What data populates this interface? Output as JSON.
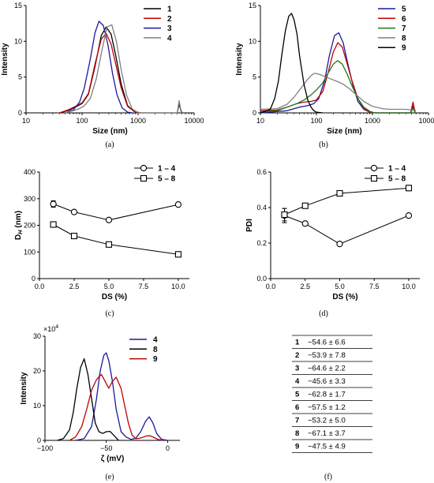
{
  "panel_labels": [
    "(a)",
    "(b)",
    "(c)",
    "(d)",
    "(e)",
    "(f)"
  ],
  "chart_data": [
    {
      "id": "a",
      "type": "line",
      "xscale": "log",
      "xlabel": "Size (nm)",
      "ylabel": "Intensity",
      "xlim": [
        10,
        10000
      ],
      "ylim": [
        0,
        15
      ],
      "xticks": [
        10,
        100,
        1000,
        10000
      ],
      "xtick_labels": [
        "10",
        "100",
        "1000",
        "10000"
      ],
      "yticks": [
        0,
        5,
        10,
        15
      ],
      "legend": "top-right",
      "series": [
        {
          "name": "1",
          "color": "#000000",
          "x": [
            40,
            60,
            80,
            100,
            130,
            170,
            220,
            270,
            330,
            400,
            500,
            650,
            850,
            1100,
            5000,
            5400,
            5800,
            6200
          ],
          "y": [
            0,
            0.4,
            0.9,
            1.3,
            2.6,
            6.5,
            10.8,
            12.0,
            11.0,
            8.0,
            4.0,
            1.0,
            0.2,
            0,
            0,
            1.3,
            0.3,
            0
          ]
        },
        {
          "name": "2",
          "color": "#c00000",
          "x": [
            40,
            60,
            80,
            100,
            130,
            170,
            220,
            270,
            330,
            400,
            500,
            650,
            850,
            1100
          ],
          "y": [
            0,
            0.5,
            1.0,
            1.4,
            2.7,
            6.8,
            10.3,
            11.1,
            9.6,
            6.8,
            3.5,
            0.9,
            0.2,
            0
          ]
        },
        {
          "name": "3",
          "color": "#1a1a9a",
          "x": [
            50,
            70,
            90,
            110,
            140,
            170,
            200,
            240,
            290,
            350,
            420,
            520,
            650,
            800
          ],
          "y": [
            0,
            0.4,
            1.5,
            3.5,
            7.5,
            11.2,
            12.8,
            12.2,
            9.5,
            5.5,
            2.5,
            0.7,
            0.1,
            0
          ]
        },
        {
          "name": "4",
          "color": "#808080",
          "x": [
            50,
            70,
            90,
            110,
            140,
            180,
            230,
            280,
            340,
            410,
            500,
            620,
            780,
            1000,
            5000,
            5400,
            5800,
            6200
          ],
          "y": [
            0,
            0.3,
            0.6,
            1.0,
            2.0,
            4.8,
            9.0,
            12.0,
            12.3,
            10.0,
            6.0,
            2.5,
            0.6,
            0,
            0,
            1.7,
            0.4,
            0
          ]
        }
      ]
    },
    {
      "id": "b",
      "type": "line",
      "xscale": "log",
      "xlabel": "Size (nm)",
      "ylabel": "Intensity",
      "xlim": [
        10,
        10000
      ],
      "ylim": [
        0,
        15
      ],
      "xticks": [
        10,
        100,
        1000,
        10000
      ],
      "xtick_labels": [
        "10",
        "100",
        "1000",
        "10000"
      ],
      "yticks": [
        0,
        5,
        10,
        15
      ],
      "legend": "top-right",
      "series": [
        {
          "name": "5",
          "color": "#1a1a9a",
          "x": [
            10,
            30,
            50,
            70,
            90,
            110,
            140,
            170,
            210,
            250,
            300,
            360,
            450,
            550,
            700,
            900,
            1100,
            4800,
            5300,
            5800
          ],
          "y": [
            0,
            0.3,
            0.8,
            1.0,
            1.3,
            2.0,
            4.5,
            8.0,
            10.8,
            11.2,
            9.8,
            7.0,
            3.8,
            1.6,
            0.5,
            0.1,
            0,
            0,
            0.9,
            0
          ]
        },
        {
          "name": "6",
          "color": "#c00000",
          "x": [
            10,
            20,
            30,
            45,
            60,
            80,
            100,
            130,
            160,
            200,
            240,
            290,
            350,
            430,
            550,
            700,
            900,
            1100,
            4800,
            5300,
            5800
          ],
          "y": [
            0.3,
            0.4,
            0.8,
            1.3,
            1.5,
            1.6,
            1.8,
            3.0,
            5.5,
            8.5,
            9.8,
            9.2,
            7.0,
            4.5,
            2.0,
            0.6,
            0.1,
            0,
            0,
            1.5,
            0
          ]
        },
        {
          "name": "7",
          "color": "#1a7a1a",
          "x": [
            10,
            20,
            30,
            45,
            60,
            80,
            100,
            130,
            160,
            200,
            240,
            290,
            350,
            430,
            550,
            700,
            900,
            1100,
            4800,
            5300,
            5800
          ],
          "y": [
            0.1,
            0.3,
            0.8,
            1.3,
            1.8,
            2.5,
            3.2,
            4.2,
            5.5,
            6.8,
            7.3,
            6.8,
            5.5,
            3.8,
            2.0,
            0.8,
            0.2,
            0,
            0,
            0.7,
            0
          ]
        },
        {
          "name": "8",
          "color": "#808080",
          "x": [
            10,
            20,
            30,
            40,
            50,
            60,
            70,
            80,
            90,
            100,
            120,
            150,
            200,
            250,
            300,
            400,
            500,
            700,
            1000,
            1500,
            2000,
            3000,
            4000,
            5000,
            6000
          ],
          "y": [
            0.5,
            0.6,
            1.2,
            2.2,
            3.2,
            4.0,
            4.7,
            5.2,
            5.5,
            5.5,
            5.3,
            5.0,
            4.6,
            4.3,
            4.0,
            3.3,
            2.6,
            1.6,
            0.9,
            0.6,
            0.5,
            0.5,
            0.5,
            0.4,
            0.3
          ]
        },
        {
          "name": "9",
          "color": "#000000",
          "x": [
            10,
            15,
            18,
            21,
            24,
            28,
            32,
            36,
            40,
            45,
            50,
            60,
            70,
            80,
            90,
            100,
            130
          ],
          "y": [
            0,
            0.5,
            2.0,
            4.5,
            8.0,
            11.5,
            13.5,
            13.9,
            13.0,
            11.0,
            8.0,
            4.0,
            1.8,
            0.8,
            0.3,
            0.1,
            0
          ]
        }
      ]
    },
    {
      "id": "c",
      "type": "scatter",
      "xlabel": "DS (%)",
      "ylabel": "D_H (nm)",
      "xlim": [
        0,
        10.8
      ],
      "ylim": [
        0,
        400
      ],
      "xticks": [
        0,
        2.5,
        5,
        7.5,
        10
      ],
      "xtick_labels": [
        "0.0",
        "2.5",
        "5.0",
        "7.5",
        "10.0"
      ],
      "yticks": [
        0,
        100,
        200,
        300,
        400
      ],
      "legend": "top-right",
      "series": [
        {
          "name": "1 – 4",
          "marker": "circle",
          "x": [
            1,
            2.5,
            5,
            10
          ],
          "y": [
            280,
            250,
            220,
            278
          ],
          "err": [
            12,
            6,
            5,
            5
          ]
        },
        {
          "name": "5 – 8",
          "marker": "square",
          "x": [
            1,
            2.5,
            5,
            10
          ],
          "y": [
            203,
            160,
            128,
            91
          ],
          "err": [
            6,
            5,
            4,
            4
          ]
        }
      ]
    },
    {
      "id": "d",
      "type": "scatter",
      "xlabel": "DS (%)",
      "ylabel": "PDI",
      "xlim": [
        0,
        10.8
      ],
      "ylim": [
        0,
        0.6
      ],
      "xticks": [
        0,
        2.5,
        5,
        7.5,
        10
      ],
      "xtick_labels": [
        "0.0",
        "2.5",
        "5.0",
        "7.5",
        "10.0"
      ],
      "yticks": [
        0,
        0.2,
        0.4,
        0.6
      ],
      "ytick_labels": [
        "0.0",
        "0.2",
        "0.4",
        "0.6"
      ],
      "legend": "top-right",
      "series": [
        {
          "name": "1 – 4",
          "marker": "circle",
          "x": [
            1,
            2.5,
            5,
            10
          ],
          "y": [
            0.355,
            0.31,
            0.195,
            0.355
          ],
          "err": [
            0.04,
            0.005,
            0.005,
            0.005
          ]
        },
        {
          "name": "5 – 8",
          "marker": "square",
          "x": [
            1,
            2.5,
            5,
            10
          ],
          "y": [
            0.36,
            0.41,
            0.48,
            0.51
          ],
          "err": [
            0.035,
            0.01,
            0.01,
            0.015
          ]
        }
      ]
    },
    {
      "id": "e",
      "type": "line",
      "xlabel": "ζ (mV)",
      "ylabel": "Intensity",
      "y_multiplier": "×10",
      "y_multiplier_exp": "4",
      "xlim": [
        -100,
        10
      ],
      "ylim": [
        0,
        30
      ],
      "xticks": [
        -100,
        -50,
        0
      ],
      "xtick_labels": [
        "−100",
        "−50",
        "0"
      ],
      "yticks": [
        0,
        10,
        20,
        30
      ],
      "legend": "top-right",
      "series": [
        {
          "name": "4",
          "color": "#1a1a9a",
          "x": [
            -75,
            -68,
            -62,
            -58,
            -55,
            -52,
            -50,
            -48,
            -45,
            -42,
            -38,
            -34,
            -30,
            -26,
            -22,
            -18,
            -15,
            -12,
            -9,
            -5,
            0
          ],
          "y": [
            0,
            0.5,
            4.0,
            12.0,
            20.0,
            24.5,
            25.2,
            23.0,
            17.0,
            9.0,
            2.5,
            1.0,
            0.3,
            0.6,
            2.5,
            5.5,
            6.8,
            5.0,
            2.0,
            0.3,
            0
          ]
        },
        {
          "name": "8",
          "color": "#000000",
          "x": [
            -90,
            -85,
            -80,
            -77,
            -74,
            -71,
            -68,
            -65,
            -62,
            -59,
            -56,
            -53,
            -50,
            -47,
            -44,
            -40
          ],
          "y": [
            0,
            0.5,
            3.0,
            8.0,
            15.0,
            21.0,
            23.5,
            19.0,
            12.0,
            5.0,
            2.5,
            2.0,
            2.5,
            2.6,
            1.5,
            0
          ]
        },
        {
          "name": "9",
          "color": "#c00000",
          "x": [
            -80,
            -75,
            -70,
            -66,
            -62,
            -58,
            -54,
            -51,
            -48,
            -45,
            -42,
            -38,
            -35,
            -32,
            -29,
            -26,
            -23,
            -20,
            -17,
            -14,
            -11,
            -8,
            -4
          ],
          "y": [
            0,
            1.0,
            4.0,
            9.0,
            14.5,
            17.5,
            19.0,
            17.0,
            15.0,
            17.0,
            18.2,
            15.0,
            10.0,
            5.0,
            1.5,
            0.5,
            0.6,
            0.9,
            1.3,
            1.3,
            0.8,
            0.3,
            0
          ]
        }
      ]
    },
    {
      "id": "f",
      "type": "table",
      "rows": [
        [
          "1",
          "−54.6 ± 6.6"
        ],
        [
          "2",
          "−53.9 ± 7.8"
        ],
        [
          "3",
          "−64.6 ± 2.2"
        ],
        [
          "4",
          "−45.6 ± 3.3"
        ],
        [
          "5",
          "−62.8 ± 1.7"
        ],
        [
          "6",
          "−57.5 ± 1.2"
        ],
        [
          "7",
          "−53.2 ± 5.0"
        ],
        [
          "8",
          "−67.1 ± 3.7"
        ],
        [
          "9",
          "−47.5 ± 4.9"
        ]
      ]
    }
  ]
}
